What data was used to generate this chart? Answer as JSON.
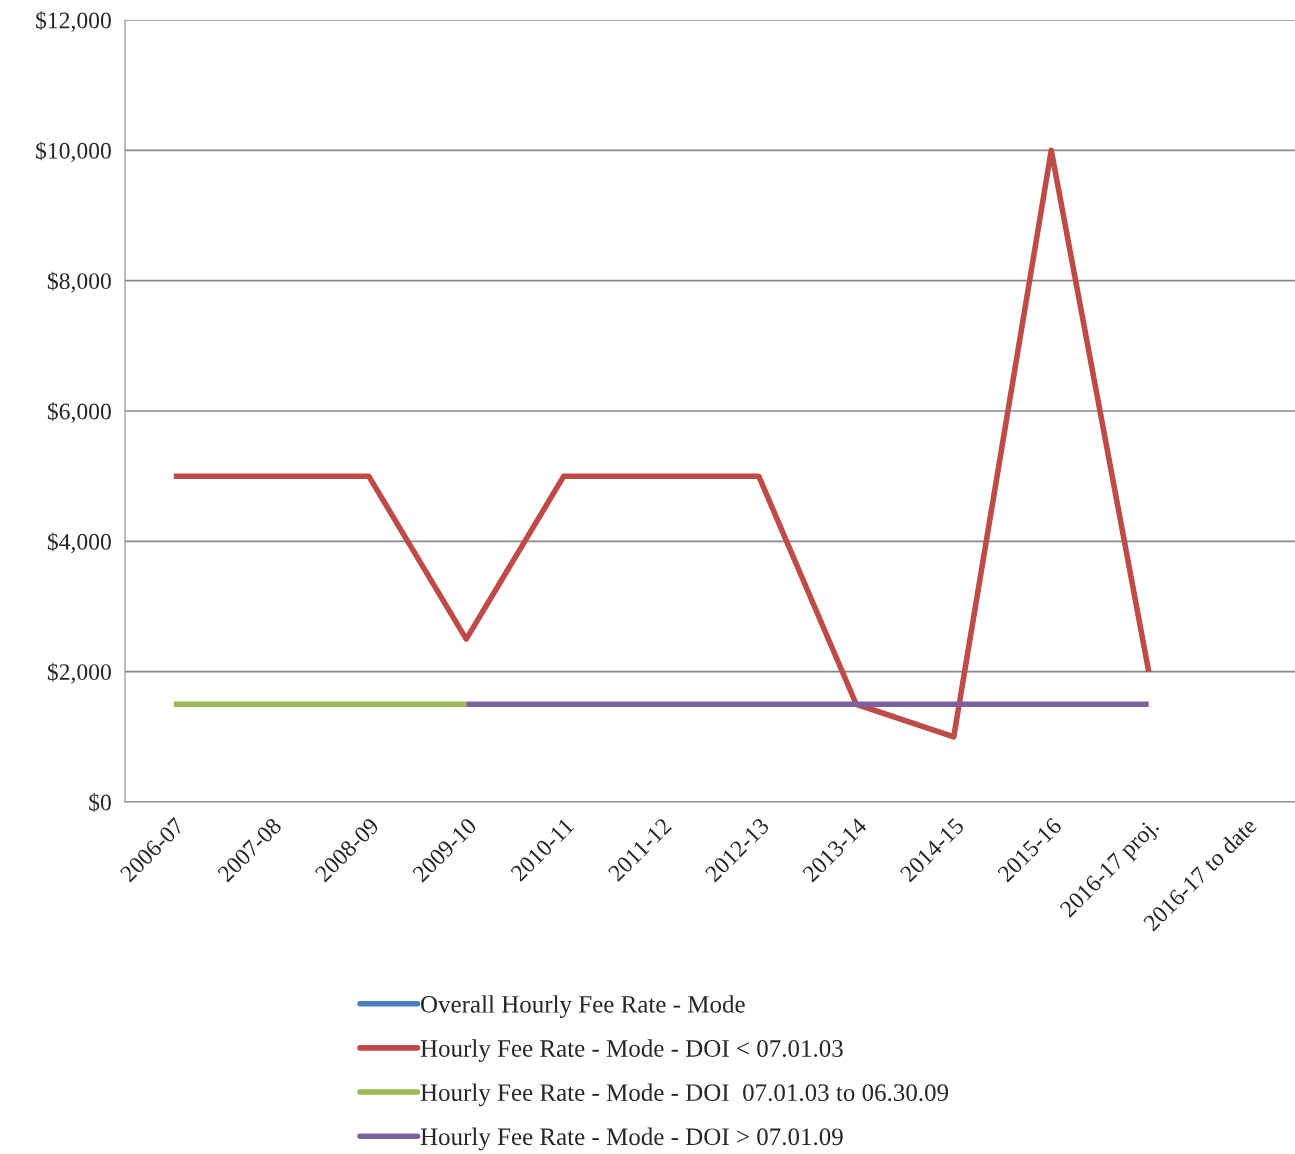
{
  "chart_data": {
    "type": "line",
    "categories": [
      "2006-07",
      "2007-08",
      "2008-09",
      "2009-10",
      "2010-11",
      "2011-12",
      "2012-13",
      "2013-14",
      "2014-15",
      "2015-16",
      "2016-17 proj.",
      "2016-17 to date"
    ],
    "series": [
      {
        "name": "Overall Hourly Fee Rate - Mode",
        "color": "#4a7ebb",
        "values": [
          null,
          null,
          null,
          null,
          null,
          null,
          null,
          null,
          null,
          null,
          null,
          null
        ]
      },
      {
        "name": "Hourly Fee Rate - Mode - DOI < 07.01.03",
        "color": "#be4b48",
        "values": [
          5000,
          5000,
          5000,
          2500,
          5000,
          5000,
          5000,
          1500,
          1000,
          10000,
          2000,
          null
        ]
      },
      {
        "name": "Hourly Fee Rate - Mode - DOI  07.01.03 to 06.30.09",
        "color": "#98b954",
        "values": [
          1500,
          1500,
          1500,
          1500,
          null,
          null,
          null,
          null,
          null,
          null,
          null,
          null
        ]
      },
      {
        "name": "Hourly Fee Rate - Mode - DOI > 07.01.09",
        "color": "#7d60a0",
        "values": [
          null,
          null,
          null,
          1500,
          1500,
          1500,
          1500,
          1500,
          1500,
          1500,
          1500,
          null
        ]
      }
    ],
    "ylim": [
      0,
      12000
    ],
    "yticks": [
      {
        "value": 0,
        "label": "$0"
      },
      {
        "value": 2000,
        "label": "$2,000"
      },
      {
        "value": 4000,
        "label": "$4,000"
      },
      {
        "value": 6000,
        "label": "$6,000"
      },
      {
        "value": 8000,
        "label": "$8,000"
      },
      {
        "value": 10000,
        "label": "$10,000"
      },
      {
        "value": 12000,
        "label": "$12,000"
      }
    ],
    "grid": "y",
    "legend": "bottom",
    "marker": "none",
    "line_style": "solid"
  }
}
